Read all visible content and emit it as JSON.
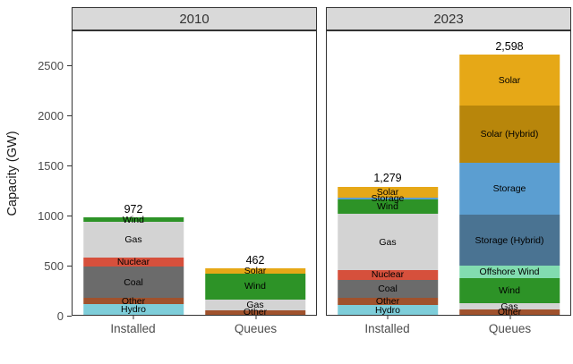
{
  "chart_data": {
    "type": "bar",
    "stacked": true,
    "ylabel": "Capacity (GW)",
    "ylim": [
      0,
      2850
    ],
    "y_ticks": [
      0,
      500,
      1000,
      1500,
      2000,
      2500
    ],
    "grid": "off",
    "legend": "none",
    "facets": [
      {
        "label": "2010",
        "bars": [
          {
            "category": "Installed",
            "total": 972,
            "total_label": "972",
            "segments": [
              {
                "name": "Hydro",
                "value": 105
              },
              {
                "name": "Other",
                "value": 65
              },
              {
                "name": "Coal",
                "value": 310
              },
              {
                "name": "Nuclear",
                "value": 95
              },
              {
                "name": "Gas",
                "value": 350
              },
              {
                "name": "Wind",
                "value": 47
              }
            ]
          },
          {
            "category": "Queues",
            "total": 462,
            "total_label": "462",
            "segments": [
              {
                "name": "Other",
                "value": 45
              },
              {
                "name": "Gas",
                "value": 110
              },
              {
                "name": "Wind",
                "value": 255
              },
              {
                "name": "Solar",
                "value": 52
              }
            ]
          }
        ]
      },
      {
        "label": "2023",
        "bars": [
          {
            "category": "Installed",
            "total": 1279,
            "total_label": "1,279",
            "segments": [
              {
                "name": "Hydro",
                "value": 96
              },
              {
                "name": "Other",
                "value": 74
              },
              {
                "name": "Coal",
                "value": 178
              },
              {
                "name": "Nuclear",
                "value": 100
              },
              {
                "name": "Gas",
                "value": 560
              },
              {
                "name": "Wind",
                "value": 141
              },
              {
                "name": "Storage",
                "value": 17
              },
              {
                "name": "Solar",
                "value": 113
              }
            ]
          },
          {
            "category": "Queues",
            "total": 2598,
            "total_label": "2,598",
            "segments": [
              {
                "name": "Other",
                "value": 51
              },
              {
                "name": "Gas",
                "value": 62
              },
              {
                "name": "Wind",
                "value": 255
              },
              {
                "name": "Offshore Wind",
                "value": 120
              },
              {
                "name": "Storage (Hybrid)",
                "value": 512
              },
              {
                "name": "Storage",
                "value": 516
              },
              {
                "name": "Solar (Hybrid)",
                "value": 570
              },
              {
                "name": "Solar",
                "value": 512
              }
            ]
          }
        ]
      }
    ],
    "colors": {
      "Hydro": "#7ecdd9",
      "Other": "#a0522d",
      "Coal": "#6b6b6b",
      "Nuclear": "#d6503c",
      "Gas": "#d3d3d3",
      "Wind": "#2d9327",
      "Solar": "#e6a817",
      "Solar (Hybrid)": "#b8860b",
      "Storage": "#5b9ed1",
      "Storage (Hybrid)": "#4a7392",
      "Offshore Wind": "#82dcb0"
    },
    "strip_background": "#d9d9d9",
    "panel_border": "#333333",
    "axis_text_color": "#4d4d4d"
  },
  "layout_labels": {
    "facet_2010": "2010",
    "facet_2023": "2023"
  }
}
